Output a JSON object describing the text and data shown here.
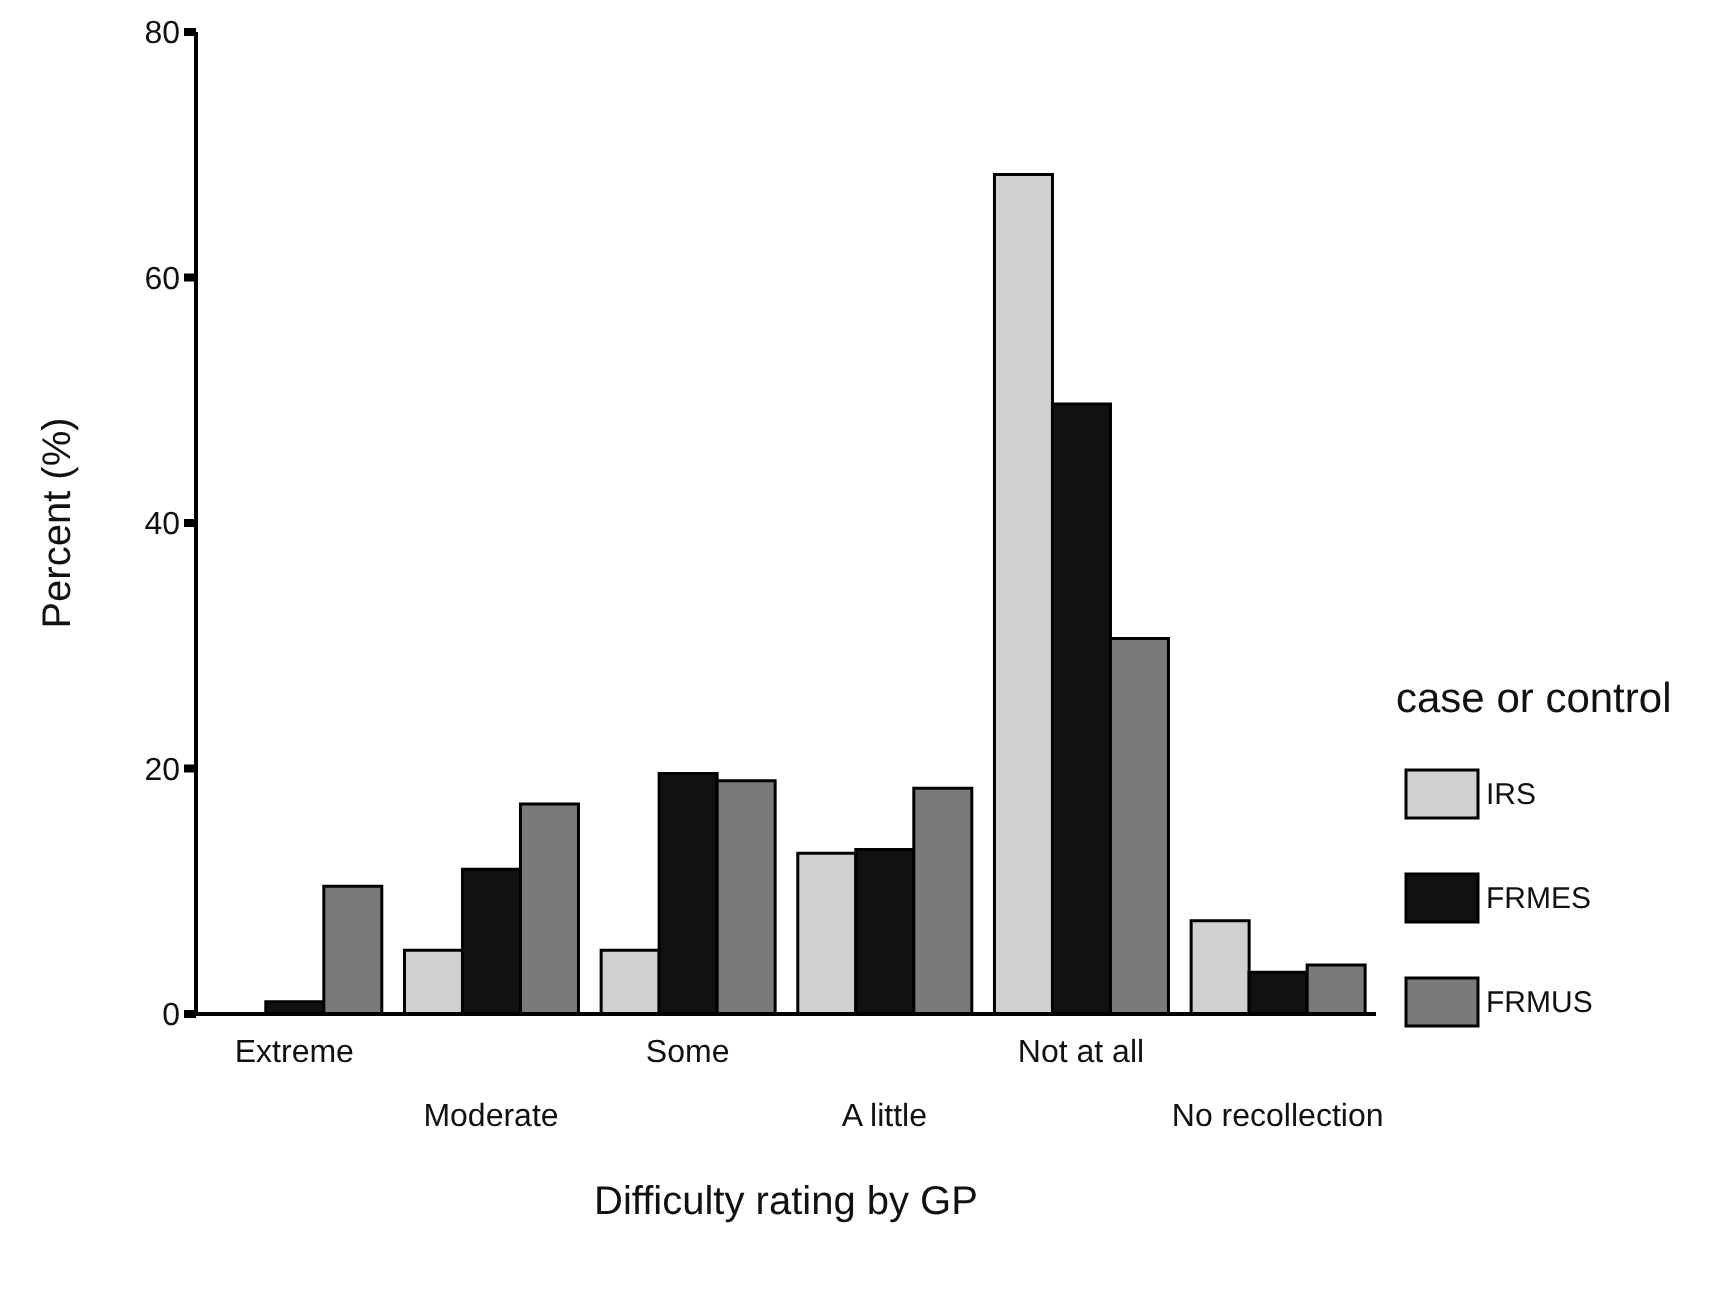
{
  "chart_data": {
    "type": "bar",
    "xlabel": "Difficulty rating by GP",
    "ylabel": "Percent (%)",
    "legend_title": "case or control",
    "legend": "right",
    "grid": false,
    "categories": [
      "Extreme",
      "Moderate",
      "Some",
      "A little",
      "Not at all",
      "No recollection"
    ],
    "ylim": [
      0,
      80
    ],
    "yticks": [
      0,
      20,
      40,
      60,
      80
    ],
    "series": [
      {
        "name": "IRS",
        "color": "#d0d0d0",
        "values": [
          0,
          5.2,
          5.2,
          13.1,
          68.4,
          7.6
        ]
      },
      {
        "name": "FRMES",
        "color": "#111111",
        "values": [
          1,
          11.8,
          19.6,
          13.4,
          49.7,
          3.4
        ]
      },
      {
        "name": "FRMUS",
        "color": "#7a7a7a",
        "values": [
          10.4,
          17.1,
          19,
          18.4,
          30.6,
          4
        ]
      }
    ]
  }
}
